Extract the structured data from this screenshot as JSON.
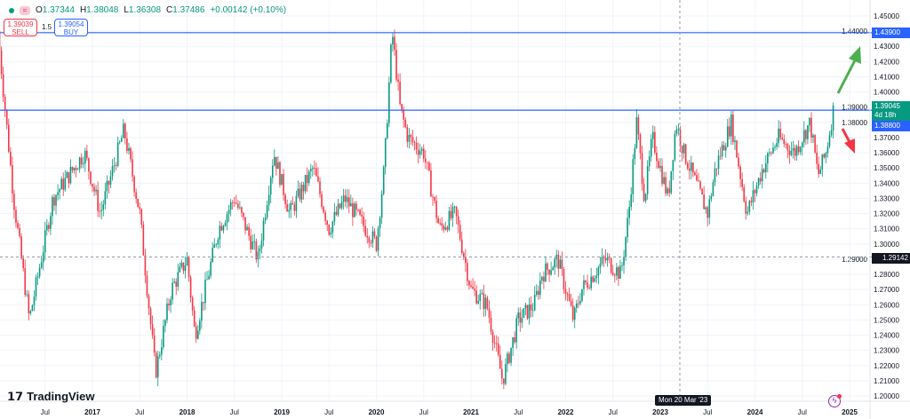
{
  "header": {
    "open_label": "O",
    "open": "1.37344",
    "high_label": "H",
    "high": "1.38048",
    "low_label": "L",
    "low": "1.36308",
    "close_label": "C",
    "close": "1.37486",
    "change": "+0.00142 (+0.10%)"
  },
  "trade": {
    "sell_price": "1.39039",
    "sell_label": "SELL",
    "quantity": "1.5",
    "buy_price": "1.39054",
    "buy_label": "BUY"
  },
  "price_labels": {
    "resistance": "1.43900",
    "current": "1.39045",
    "countdown": "4d 18h",
    "support": "1.38800",
    "crosshair": "1.29142"
  },
  "crosshair_date": "Mon 20 Mar '23",
  "logo": "TradingView",
  "colors": {
    "up": "#089981",
    "down": "#f23645",
    "line": "#2962ff",
    "arrow_up": "#4caf50",
    "arrow_down": "#f23645"
  },
  "chart_data": {
    "type": "candlestick",
    "interval": "weekly",
    "ylim": [
      1.195,
      1.46
    ],
    "y_ticks": [
      "1.45000",
      "1.44000",
      "1.43000",
      "1.42000",
      "1.41000",
      "1.40000",
      "1.39000",
      "1.38000",
      "1.37000",
      "1.36000",
      "1.35000",
      "1.34000",
      "1.33000",
      "1.32000",
      "1.31000",
      "1.30000",
      "1.29000",
      "1.28000",
      "1.27000",
      "1.26000",
      "1.25000",
      "1.24000",
      "1.23000",
      "1.22000",
      "1.21000",
      "1.20000"
    ],
    "x_ticks": [
      "Jul",
      "2017",
      "Jul",
      "2018",
      "Jul",
      "2019",
      "Jul",
      "2020",
      "Jul",
      "2021",
      "Jul",
      "2022",
      "Jul",
      "2023",
      "Jul",
      "2024",
      "Jul",
      "2025"
    ],
    "horizontal_lines": [
      1.439,
      1.388
    ],
    "close_path": [
      [
        "2016-01",
        1.44
      ],
      [
        "2016-03",
        1.33
      ],
      [
        "2016-05",
        1.25
      ],
      [
        "2016-08",
        1.33
      ],
      [
        "2016-12",
        1.36
      ],
      [
        "2017-02",
        1.32
      ],
      [
        "2017-05",
        1.375
      ],
      [
        "2017-07",
        1.32
      ],
      [
        "2017-09",
        1.215
      ],
      [
        "2017-11",
        1.27
      ],
      [
        "2018-01",
        1.29
      ],
      [
        "2018-02",
        1.24
      ],
      [
        "2018-05",
        1.31
      ],
      [
        "2018-07",
        1.33
      ],
      [
        "2018-10",
        1.29
      ],
      [
        "2018-12",
        1.36
      ],
      [
        "2019-02",
        1.32
      ],
      [
        "2019-05",
        1.35
      ],
      [
        "2019-07",
        1.31
      ],
      [
        "2019-09",
        1.33
      ],
      [
        "2020-01",
        1.3
      ],
      [
        "2020-02",
        1.35
      ],
      [
        "2020-03",
        1.44
      ],
      [
        "2020-04",
        1.39
      ],
      [
        "2020-05",
        1.37
      ],
      [
        "2020-07",
        1.36
      ],
      [
        "2020-09",
        1.31
      ],
      [
        "2020-11",
        1.32
      ],
      [
        "2021-01",
        1.27
      ],
      [
        "2021-03",
        1.26
      ],
      [
        "2021-05",
        1.21
      ],
      [
        "2021-07",
        1.25
      ],
      [
        "2021-09",
        1.26
      ],
      [
        "2021-10",
        1.28
      ],
      [
        "2021-12",
        1.29
      ],
      [
        "2022-02",
        1.25
      ],
      [
        "2022-03",
        1.27
      ],
      [
        "2022-06",
        1.29
      ],
      [
        "2022-08",
        1.28
      ],
      [
        "2022-09",
        1.32
      ],
      [
        "2022-10",
        1.38
      ],
      [
        "2022-11",
        1.33
      ],
      [
        "2022-12",
        1.37
      ],
      [
        "2023-02",
        1.33
      ],
      [
        "2023-03",
        1.38
      ],
      [
        "2023-04",
        1.36
      ],
      [
        "2023-07",
        1.32
      ],
      [
        "2023-08",
        1.35
      ],
      [
        "2023-10",
        1.38
      ],
      [
        "2023-12",
        1.32
      ],
      [
        "2024-02",
        1.35
      ],
      [
        "2024-04",
        1.37
      ],
      [
        "2024-06",
        1.36
      ],
      [
        "2024-08",
        1.38
      ],
      [
        "2024-09",
        1.345
      ],
      [
        "2024-10",
        1.36
      ],
      [
        "2024-11",
        1.39
      ]
    ]
  }
}
